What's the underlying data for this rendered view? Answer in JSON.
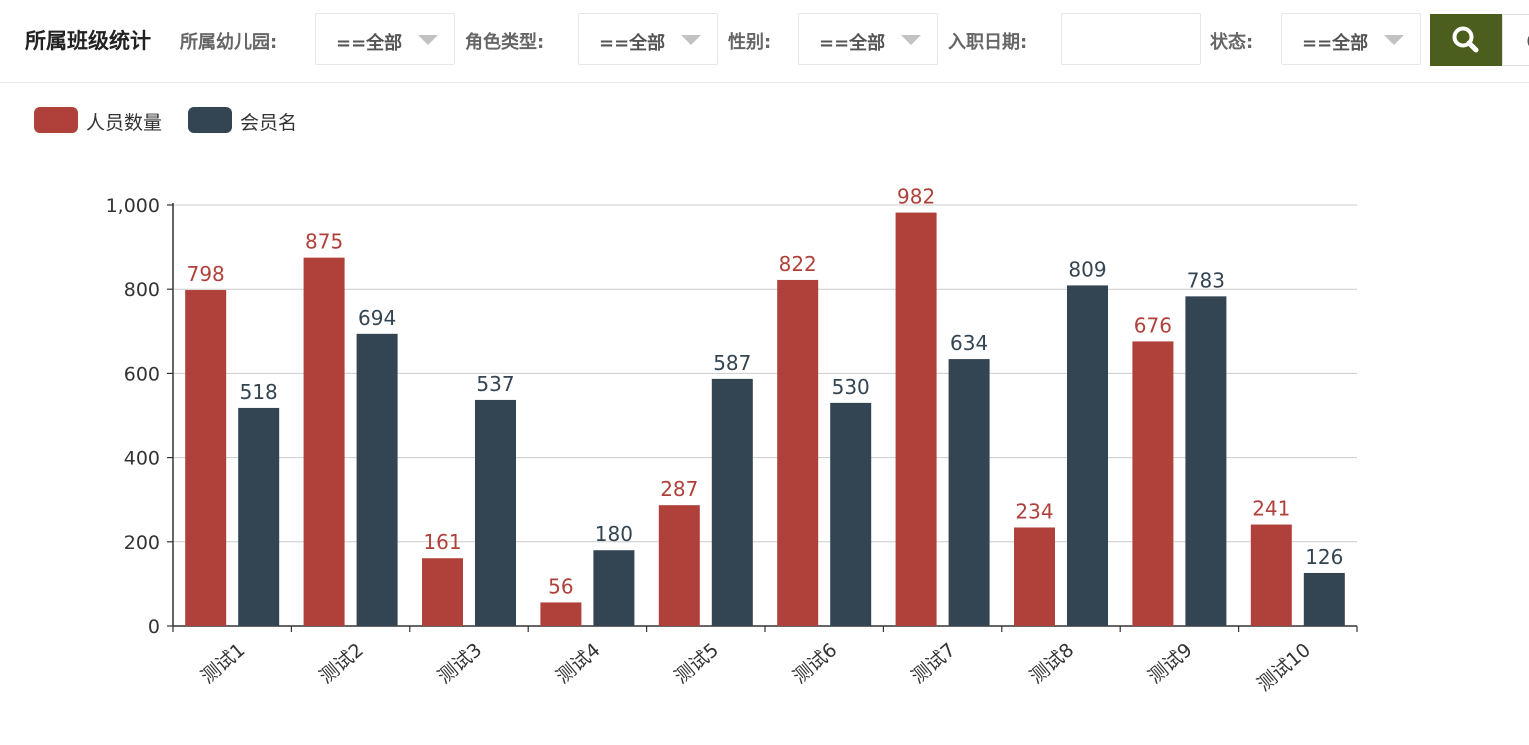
{
  "header": {
    "title": "所属班级统计",
    "filters": [
      {
        "label": "所属幼儿园:",
        "value": "==全部"
      },
      {
        "label": "角色类型:",
        "value": "==全部"
      },
      {
        "label": "性别:",
        "value": "==全部"
      },
      {
        "label": "入职日期:",
        "value": ""
      },
      {
        "label": "状态:",
        "value": "==全部"
      }
    ],
    "search_icon": "search-icon",
    "accent_color": "#4c5e1d"
  },
  "chart_data": {
    "type": "bar",
    "categories": [
      "测试1",
      "测试2",
      "测试3",
      "测试4",
      "测试5",
      "测试6",
      "测试7",
      "测试8",
      "测试9",
      "测试10"
    ],
    "series": [
      {
        "name": "人员数量",
        "color": "#b0413a",
        "values": [
          798,
          875,
          161,
          56,
          287,
          822,
          982,
          234,
          676,
          241
        ]
      },
      {
        "name": "会员名",
        "color": "#334452",
        "values": [
          518,
          694,
          537,
          180,
          587,
          530,
          634,
          809,
          783,
          126
        ]
      }
    ],
    "ylim": [
      0,
      1000
    ],
    "yticks": [
      "0",
      "200",
      "400",
      "600",
      "800",
      "1,000"
    ],
    "grid": true,
    "legend": "top-left",
    "data_labels": true
  }
}
